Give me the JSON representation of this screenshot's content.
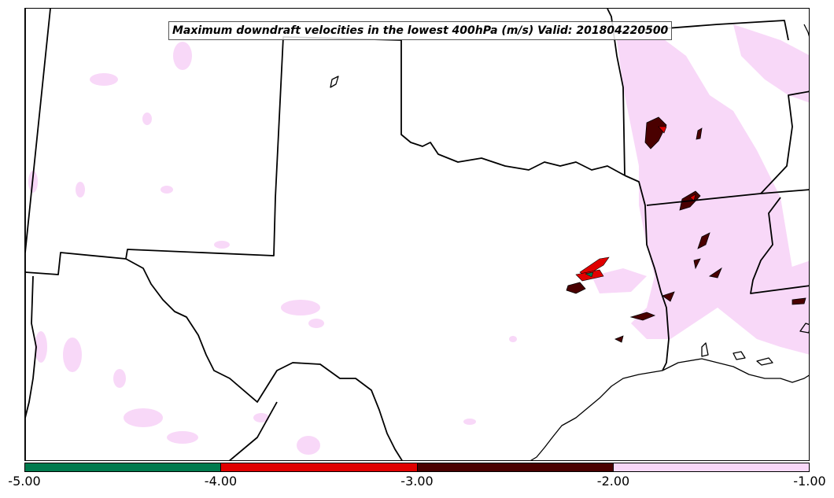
{
  "title": "Maximum downdraft velocities in the lowest 400hPa (m/s) Valid: 201804220500",
  "colorbar": {
    "segments": [
      {
        "range": "-5.00 to -4.00",
        "color": "#007a4d"
      },
      {
        "range": "-4.00 to -3.00",
        "color": "#e00000"
      },
      {
        "range": "-3.00 to -2.00",
        "color": "#4a0000"
      },
      {
        "range": "-2.00 to -1.00",
        "color": "#f8d8f8"
      }
    ],
    "ticks": [
      "-5.00",
      "-4.00",
      "-3.00",
      "-2.00",
      "-1.00"
    ]
  },
  "colors": {
    "weak": "#f8d8f8",
    "moderate": "#4a0000",
    "strong": "#e00000",
    "extreme": "#007a4d"
  }
}
